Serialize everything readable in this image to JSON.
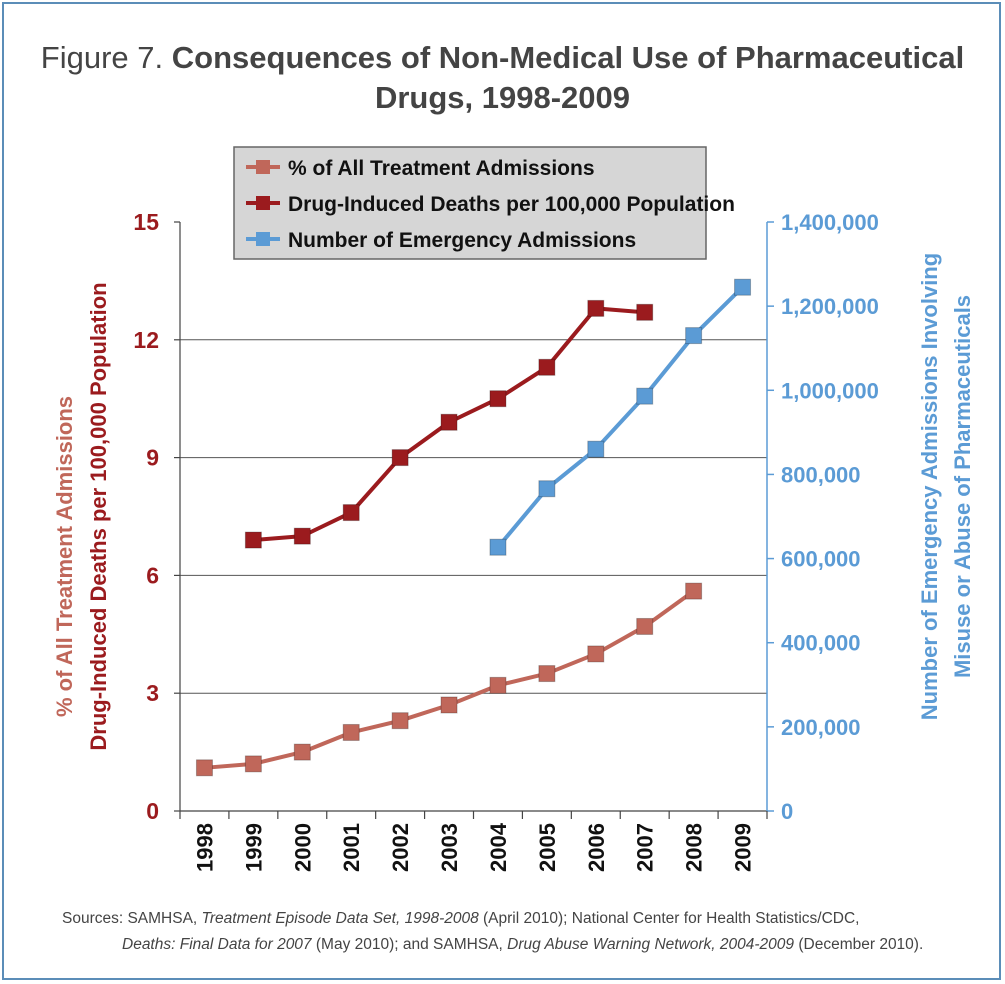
{
  "figure": {
    "label": "Figure 7.",
    "title_line1": "Consequences of Non-Medical Use of Pharmaceutical",
    "title_line2": "Drugs, 1998-2009"
  },
  "sources": {
    "prefix": "Sources:  SAMHSA, ",
    "src1_title": "Treatment Episode Data Set, 1998-2008",
    "src1_rest": " (April 2010); National Center for Health Statistics/CDC,",
    "src2_title": "Deaths: Final Data for 2007",
    "src2_rest": " (May 2010); and SAMHSA, ",
    "src3_title": "Drug Abuse Warning Network, 2004-2009",
    "src3_rest": " (December 2010)."
  },
  "chart_data": {
    "type": "line",
    "x": [
      "1998",
      "1999",
      "2000",
      "2001",
      "2002",
      "2003",
      "2004",
      "2005",
      "2006",
      "2007",
      "2008",
      "2009"
    ],
    "left_axis": {
      "label_line1": "% of All Treatment Admissions",
      "label_line2": "Drug-Induced Deaths per 100,000 Population",
      "ylim": [
        0,
        15
      ],
      "ticks": [
        0,
        3,
        6,
        9,
        12,
        15
      ],
      "tick_labels": [
        "0",
        "3",
        "6",
        "9",
        "12",
        "15"
      ]
    },
    "right_axis": {
      "label_line1": "Number of Emergency Admissions Involving",
      "label_line2": "Misuse or Abuse of Pharmaceuticals",
      "ylim": [
        0,
        1400000
      ],
      "ticks": [
        0,
        200000,
        400000,
        600000,
        800000,
        1000000,
        1200000,
        1400000
      ],
      "tick_labels": [
        "0",
        "200,000",
        "400,000",
        "600,000",
        "800,000",
        "1,000,000",
        "1,200,000",
        "1,400,000"
      ]
    },
    "grid": true,
    "legend_position": "top",
    "series": [
      {
        "name": "% of All Treatment Admissions",
        "axis": "left",
        "color": "#c0675a",
        "values": [
          1.1,
          1.2,
          1.5,
          2.0,
          2.3,
          2.7,
          3.2,
          3.5,
          4.0,
          4.7,
          5.6,
          null
        ]
      },
      {
        "name": "Drug-Induced Deaths per 100,000 Population",
        "axis": "left",
        "color": "#9b1b1e",
        "values": [
          null,
          6.9,
          7.0,
          7.6,
          9.0,
          9.9,
          10.5,
          11.3,
          12.8,
          12.7,
          null,
          null
        ]
      },
      {
        "name": "Number of Emergency Admissions",
        "axis": "right",
        "color": "#5b9bd5",
        "values": [
          null,
          null,
          null,
          null,
          null,
          null,
          627000,
          766000,
          860000,
          986000,
          1130000,
          1245000
        ]
      }
    ],
    "colors": {
      "left_axis_text": "#9b1b1e",
      "left_label_upper": "#c0675a",
      "right_axis_text": "#5b9bd5",
      "legend_bg": "#d6d6d6",
      "grid": "#555555"
    }
  }
}
